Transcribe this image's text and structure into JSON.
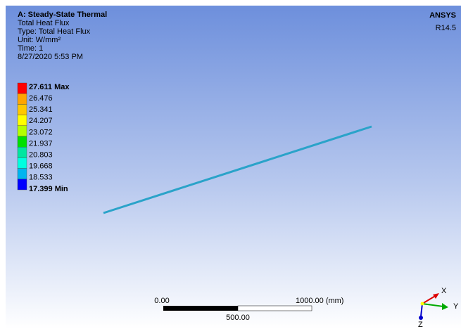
{
  "header": {
    "title": "A: Steady-State Thermal",
    "lines": [
      "Total Heat Flux",
      "Type: Total Heat Flux",
      "Unit: W/mm²",
      "Time: 1",
      "8/27/2020 5:53 PM"
    ]
  },
  "legend": {
    "labels": [
      "27.611 Max",
      "26.476",
      "25.341",
      "24.207",
      "23.072",
      "21.937",
      "20.803",
      "19.668",
      "18.533",
      "17.399 Min"
    ],
    "colors": [
      "#ff0000",
      "#ffa500",
      "#ffc800",
      "#ffff00",
      "#b4ff00",
      "#00e000",
      "#00e6a0",
      "#00ffe0",
      "#00b4f0",
      "#0000ff"
    ]
  },
  "logo": {
    "brand": "ANSYS",
    "version": "R14.5"
  },
  "scale": {
    "start": "0.00",
    "end": "1000.00 (mm)",
    "mid": "500.00"
  },
  "triad": {
    "x": "X",
    "y": "Y",
    "z": "Z"
  }
}
